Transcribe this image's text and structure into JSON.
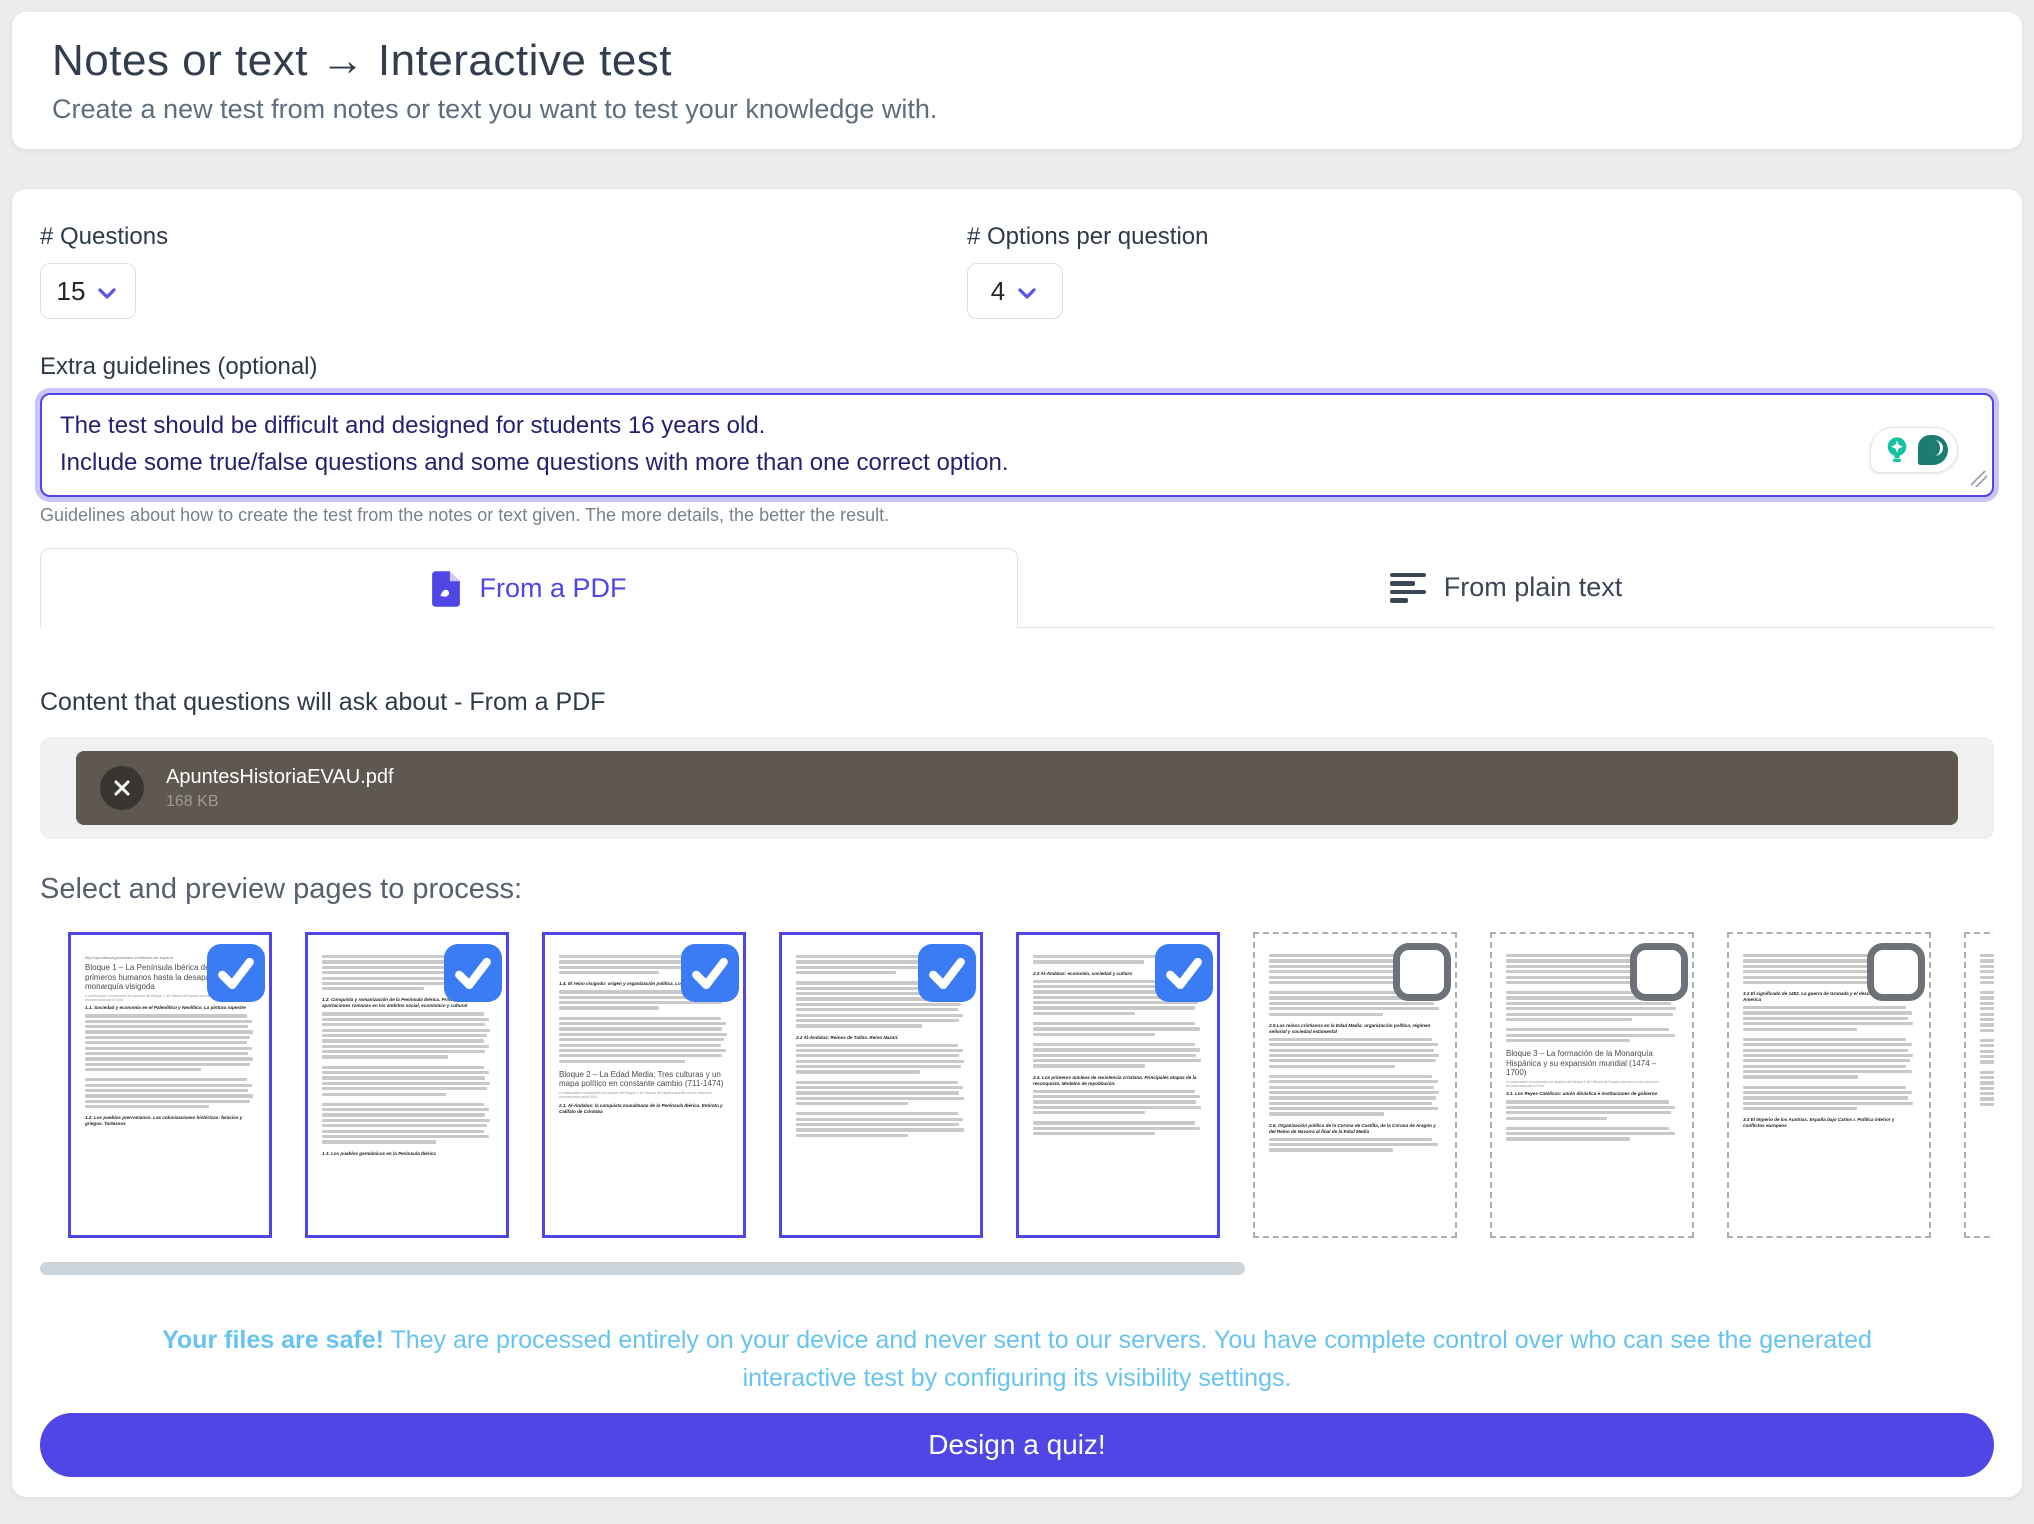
{
  "header": {
    "title": "Notes or text → Interactive test",
    "subtitle": "Create a new test from notes or text you want to test your knowledge with."
  },
  "form": {
    "questions_label": "# Questions",
    "questions_value": "15",
    "options_label": "# Options per question",
    "options_value": "4",
    "guidelines_label": "Extra guidelines (optional)",
    "guidelines_value": "The test should be difficult and designed for students 16 years old.\nInclude some true/false questions and some questions with more than one correct option.",
    "guidelines_help": "Guidelines about how to create the test from the notes or text given. The more details, the better the result."
  },
  "tabs": {
    "pdf": "From a PDF",
    "plain": "From plain text"
  },
  "content": {
    "heading": "Content that questions will ask about - From a PDF",
    "file_name": "ApuntesHistoriaEVAU.pdf",
    "file_size": "168 KB"
  },
  "pages_heading": "Select and preview pages to process:",
  "privacy": {
    "lead": "Your files are safe!",
    "rest": " They are processed entirely on your device and never sent to our servers. You have complete control over who can see the generated interactive test by configuring its visibility settings."
  },
  "submit_label": "Design a quiz!",
  "colors": {
    "accent": "#4f46e5",
    "accent_glow": "#c9c5f8",
    "check_blue": "#3b7cf5",
    "privacy_blue": "#67c3f0",
    "file_bar": "#5e5851",
    "file_x": "#393631",
    "teal": "#16c2a3",
    "teal_dark": "#1b7d6f",
    "page_bg": "#ececec"
  },
  "pages": [
    {
      "selected": true,
      "blocks": [
        [
          "t",
          "http://apuntessegundobach.es/historia-de-espana"
        ],
        [
          "h",
          "Bloque 1 – La Península Ibérica desde los primeros humanos hasta la desaparición de la monarquía visigoda"
        ],
        [
          "n",
          "A continuación encontraréis los apuntes del Bloque 1 de Historia de España acordes con la extensión recomendada para EVAU."
        ],
        [
          "s",
          "1.1. Sociedad y economía en el Paleolítico y Neolítico. La pintura rupestre"
        ],
        [
          "p",
          11
        ],
        [
          "p",
          6
        ],
        [
          "s",
          "1.2. Los pueblos prerromanos. Las colonizaciones históricas: fenicios y griegos. Tartessos"
        ]
      ]
    },
    {
      "selected": true,
      "blocks": [
        [
          "p",
          7
        ],
        [
          "s",
          "1.2. Conquista y romanización de la Península Ibérica. Principales aportaciones romanas en los ámbitos social, económico y cultural"
        ],
        [
          "p",
          9
        ],
        [
          "p",
          6
        ],
        [
          "p",
          8
        ],
        [
          "s",
          "1.3. Los pueblos germánicos en la Península Ibérica"
        ]
      ]
    },
    {
      "selected": true,
      "blocks": [
        [
          "p",
          4
        ],
        [
          "s",
          "1.4. El reino visigodo: origen y organización política. Los concilios"
        ],
        [
          "p",
          4
        ],
        [
          "p",
          9
        ],
        [
          "h",
          "Bloque 2 – La Edad Media: Tres culturas y un mapa político en constante cambio (711-1474)"
        ],
        [
          "n",
          "A continuación encontraréis los apuntes del Bloque 2 de Historia de España acordes con la extensión recomendada para EVAU."
        ],
        [
          "s",
          "2.1. Al-Ándalus: la conquista musulmana de la Península Ibérica. Emirato y Califato de Córdoba"
        ]
      ]
    },
    {
      "selected": true,
      "blocks": [
        [
          "p",
          4
        ],
        [
          "p",
          9
        ],
        [
          "s",
          "2.2 Al-Ándalus: Reinos de Taifas. Reino Nazarí."
        ],
        [
          "p",
          6
        ],
        [
          "p",
          5
        ],
        [
          "p",
          5
        ]
      ]
    },
    {
      "selected": true,
      "blocks": [
        [
          "p",
          2
        ],
        [
          "s",
          "2.3 Al-Ándalus: economía, sociedad y cultura"
        ],
        [
          "p",
          7
        ],
        [
          "p",
          3
        ],
        [
          "p",
          5
        ],
        [
          "s",
          "2.4. Los primeros núcleos de resistencia cristiana. Principales etapas de la reconquista. Modelos de repoblación."
        ],
        [
          "p",
          5
        ],
        [
          "p",
          3
        ]
      ]
    },
    {
      "selected": false,
      "blocks": [
        [
          "p",
          6
        ],
        [
          "p",
          5
        ],
        [
          "s",
          "2.5 Los reinos cristianos en la Edad Media: organización política, régimen señorial y sociedad estamental"
        ],
        [
          "p",
          6
        ],
        [
          "p",
          8
        ],
        [
          "s",
          "2.6. Organización política de la Corona de Castilla, de la Corona de Aragón y del Reino de Navarra al final de la Edad Media"
        ],
        [
          "p",
          3
        ]
      ]
    },
    {
      "selected": false,
      "blocks": [
        [
          "p",
          6
        ],
        [
          "p",
          6
        ],
        [
          "p",
          3
        ],
        [
          "h",
          "Bloque 3 – La formación de la Monarquía Hispánica y su expansión mundial (1474 – 1700)"
        ],
        [
          "n",
          "A continuación encontraréis los apuntes del Bloque 3 de Historia de España acordes con la extensión recomendada para EVAU."
        ],
        [
          "s",
          "3.1. Los Reyes Católicos: unión dinástica e instituciones de gobierno"
        ],
        [
          "p",
          4
        ],
        [
          "p",
          3
        ]
      ]
    },
    {
      "selected": false,
      "blocks": [
        [
          "p",
          6
        ],
        [
          "s",
          "3.2 El significado de 1492. La guerra de Granada y el descubrimiento de América"
        ],
        [
          "p",
          5
        ],
        [
          "p",
          8
        ],
        [
          "p",
          5
        ],
        [
          "s",
          "3.3 El Imperio de los Austrias. España bajo Carlos I. Política interior y conflictos europeos"
        ]
      ]
    },
    {
      "selected": false,
      "blocks": [
        [
          "p",
          6
        ],
        [
          "p",
          8
        ],
        [
          "p",
          5
        ],
        [
          "p",
          7
        ]
      ]
    }
  ]
}
